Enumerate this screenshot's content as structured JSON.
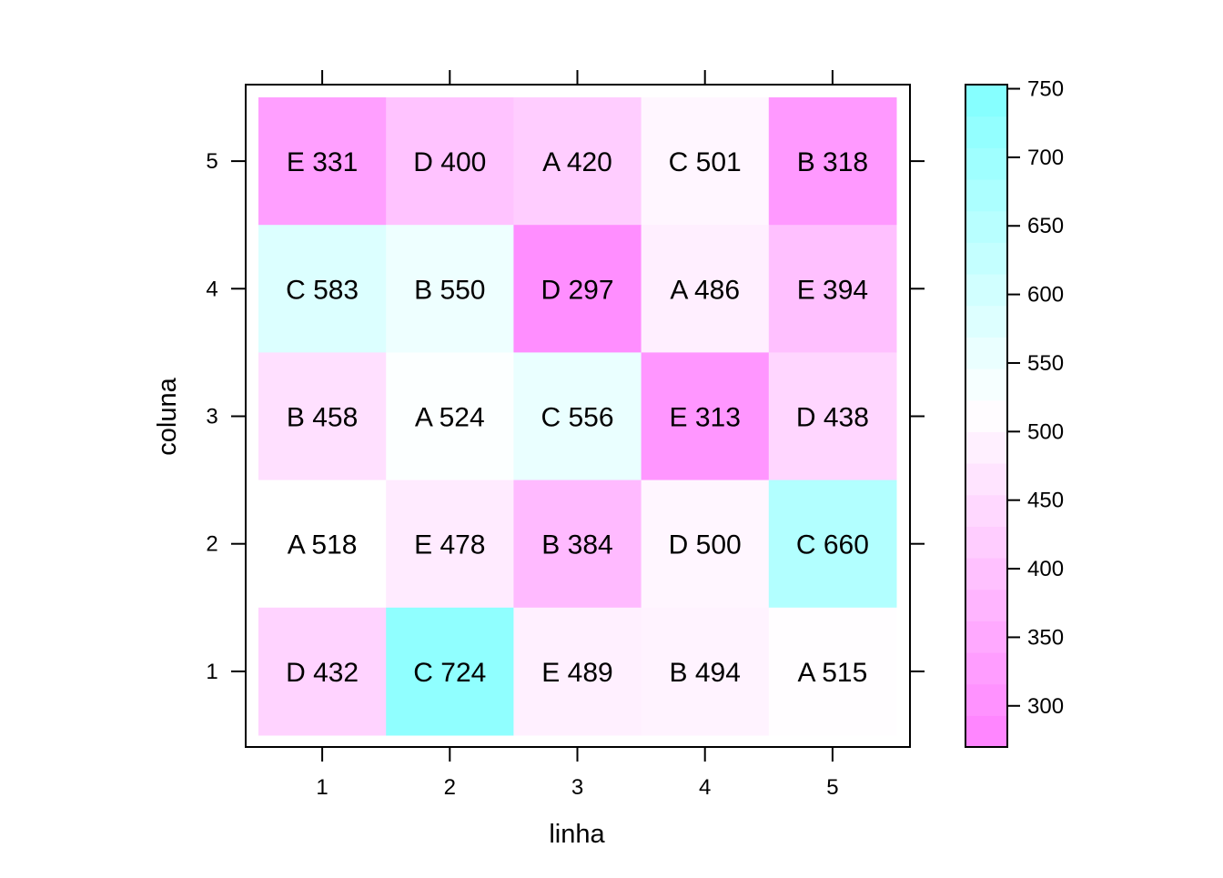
{
  "chart_data": {
    "type": "heatmap",
    "title": "",
    "xlabel": "linha",
    "ylabel": "coluna",
    "x_categories": [
      "1",
      "2",
      "3",
      "4",
      "5"
    ],
    "y_categories": [
      "1",
      "2",
      "3",
      "4",
      "5"
    ],
    "cells": [
      {
        "linha": 1,
        "coluna": 5,
        "label": "E 331",
        "value": 331
      },
      {
        "linha": 2,
        "coluna": 5,
        "label": "D 400",
        "value": 400
      },
      {
        "linha": 3,
        "coluna": 5,
        "label": "A 420",
        "value": 420
      },
      {
        "linha": 4,
        "coluna": 5,
        "label": "C 501",
        "value": 501
      },
      {
        "linha": 5,
        "coluna": 5,
        "label": "B 318",
        "value": 318
      },
      {
        "linha": 1,
        "coluna": 4,
        "label": "C 583",
        "value": 583
      },
      {
        "linha": 2,
        "coluna": 4,
        "label": "B 550",
        "value": 550
      },
      {
        "linha": 3,
        "coluna": 4,
        "label": "D 297",
        "value": 297
      },
      {
        "linha": 4,
        "coluna": 4,
        "label": "A 486",
        "value": 486
      },
      {
        "linha": 5,
        "coluna": 4,
        "label": "E 394",
        "value": 394
      },
      {
        "linha": 1,
        "coluna": 3,
        "label": "B 458",
        "value": 458
      },
      {
        "linha": 2,
        "coluna": 3,
        "label": "A 524",
        "value": 524
      },
      {
        "linha": 3,
        "coluna": 3,
        "label": "C 556",
        "value": 556
      },
      {
        "linha": 4,
        "coluna": 3,
        "label": "E 313",
        "value": 313
      },
      {
        "linha": 5,
        "coluna": 3,
        "label": "D 438",
        "value": 438
      },
      {
        "linha": 1,
        "coluna": 2,
        "label": "A 518",
        "value": 518
      },
      {
        "linha": 2,
        "coluna": 2,
        "label": "E 478",
        "value": 478
      },
      {
        "linha": 3,
        "coluna": 2,
        "label": "B 384",
        "value": 384
      },
      {
        "linha": 4,
        "coluna": 2,
        "label": "D 500",
        "value": 500
      },
      {
        "linha": 5,
        "coluna": 2,
        "label": "C 660",
        "value": 660
      },
      {
        "linha": 1,
        "coluna": 1,
        "label": "D 432",
        "value": 432
      },
      {
        "linha": 2,
        "coluna": 1,
        "label": "C 724",
        "value": 724
      },
      {
        "linha": 3,
        "coluna": 1,
        "label": "E 489",
        "value": 489
      },
      {
        "linha": 4,
        "coluna": 1,
        "label": "B 494",
        "value": 494
      },
      {
        "linha": 5,
        "coluna": 1,
        "label": "A 515",
        "value": 515
      }
    ],
    "colorbar": {
      "range": [
        270,
        753
      ],
      "ticks": [
        300,
        350,
        400,
        450,
        500,
        550,
        600,
        650,
        700,
        750
      ],
      "low_color": "#ff80ff",
      "mid_color": "#ffffff",
      "high_color": "#80ffff",
      "mid_value": 518
    },
    "grid": false,
    "legend": "right"
  }
}
